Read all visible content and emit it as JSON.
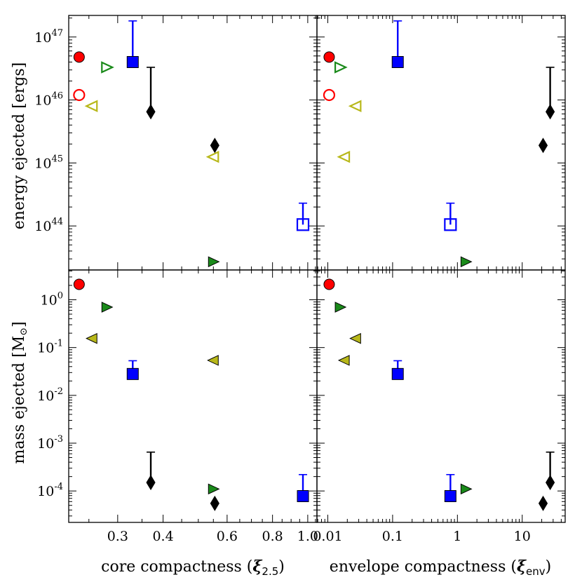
{
  "chart_data": {
    "type": "scatter",
    "layout": "2x2 shared axes",
    "panels": {
      "top_left": {
        "x": "core",
        "y": "energy"
      },
      "top_right": {
        "x": "env",
        "y": "energy"
      },
      "bottom_left": {
        "x": "core",
        "y": "mass"
      },
      "bottom_right": {
        "x": "env",
        "y": "mass"
      }
    },
    "axes": {
      "core": {
        "scale": "log",
        "xlim": [
          0.22,
          1.06
        ],
        "label_text": "core compactness (",
        "label_symbol": "ξ",
        "label_sub": "2.5",
        "label_close": ")",
        "tick_labels": [
          "0.3",
          "0.4",
          "0.6",
          "0.8",
          "1.0"
        ],
        "tick_values": [
          0.3,
          0.4,
          0.6,
          0.8,
          1.0
        ],
        "minor_ticks": [
          0.25,
          0.3,
          0.35,
          0.4,
          0.45,
          0.5,
          0.55,
          0.6,
          0.65,
          0.7,
          0.75,
          0.8,
          0.85,
          0.9,
          0.95,
          1.0,
          1.05
        ]
      },
      "env": {
        "scale": "log",
        "xlim": [
          0.0068,
          46
        ],
        "label_text": "envelope compactness (",
        "label_symbol": "ξ",
        "label_sub": "env",
        "label_close": ")",
        "tick_labels": [
          "0.01",
          "0.1",
          "1",
          "10"
        ],
        "tick_values": [
          0.01,
          0.1,
          1,
          10
        ]
      },
      "energy": {
        "scale": "log",
        "ylim": [
          2e+43,
          2.2e+47
        ],
        "label": "energy ejected [ergs]",
        "tick_base": "10",
        "tick_exponents": [
          "44",
          "45",
          "46",
          "47"
        ],
        "tick_values": [
          1e+44,
          1e+45,
          1e+46,
          1e+47
        ]
      },
      "mass": {
        "scale": "log",
        "ylim": [
          2.2e-05,
          4.2
        ],
        "label_text": "mass ejected [M",
        "label_symbol": "⊙",
        "label_close": "]",
        "tick_base": "10",
        "tick_exponents": [
          "0",
          "-1",
          "-2",
          "-3",
          "-4"
        ],
        "tick_values": [
          1,
          0.1,
          0.01,
          0.001,
          0.0001
        ]
      }
    },
    "series": [
      {
        "name": "red circle",
        "marker": "circle",
        "color": "#ff0000",
        "core": 0.235,
        "env": 0.0105,
        "energy": 4.8e+46,
        "mass": 2.1
      },
      {
        "name": "red circle (open)",
        "marker": "circle-open",
        "color": "#ff0000",
        "core": 0.235,
        "env": 0.0105,
        "energy": 1.2e+46
      },
      {
        "name": "green triangle",
        "marker": "triangle-right",
        "color": "#1a8a1a",
        "core": 0.28,
        "env": 0.0155,
        "mass": 0.7
      },
      {
        "name": "green triangle (open)",
        "marker": "triangle-right-open",
        "color": "#1a8a1a",
        "core": 0.28,
        "env": 0.0155,
        "energy": 3.3e+46
      },
      {
        "name": "green triangle 2",
        "marker": "triangle-right",
        "color": "#1a8a1a",
        "core": 0.55,
        "env": 1.35,
        "energy": 2.7e+43,
        "mass": 0.00011
      },
      {
        "name": "yellow triangle",
        "marker": "triangle-left",
        "color": "#b8b81a",
        "core": 0.255,
        "env": 0.027,
        "mass": 0.155
      },
      {
        "name": "yellow triangle (open)",
        "marker": "triangle-left-open",
        "color": "#b8b81a",
        "core": 0.255,
        "env": 0.027,
        "energy": 8e+45
      },
      {
        "name": "yellow triangle 2",
        "marker": "triangle-left",
        "color": "#b8b81a",
        "core": 0.55,
        "env": 0.018,
        "mass": 0.054
      },
      {
        "name": "yellow triangle 2 (open)",
        "marker": "triangle-left-open",
        "color": "#b8b81a",
        "core": 0.55,
        "env": 0.018,
        "energy": 1.25e+45
      },
      {
        "name": "blue square",
        "marker": "square",
        "color": "#0000ff",
        "core": 0.33,
        "env": 0.12,
        "energy": 4e+46,
        "energy_upper": 1.8e+47,
        "mass": 0.028,
        "mass_upper": 0.053
      },
      {
        "name": "blue square 2",
        "marker": "square",
        "color": "#0000ff",
        "core": 0.97,
        "env": 0.78,
        "mass": 7.8e-05,
        "mass_upper": 0.00022
      },
      {
        "name": "blue square 2 (open)",
        "marker": "square-open",
        "color": "#0000ff",
        "core": 0.97,
        "env": 0.78,
        "energy": 1.05e+44,
        "energy_upper": 2.3e+44
      },
      {
        "name": "black diamond",
        "marker": "diamond",
        "color": "#000000",
        "core": 0.37,
        "env": 27,
        "energy": 6.5e+45,
        "energy_upper": 3.3e+46,
        "mass": 0.00015,
        "mass_upper": 0.00065
      },
      {
        "name": "black diamond 2",
        "marker": "diamond",
        "color": "#000000",
        "core": 0.555,
        "env": 21,
        "energy": 1.9e+45,
        "mass": 5.5e-05
      }
    ]
  }
}
